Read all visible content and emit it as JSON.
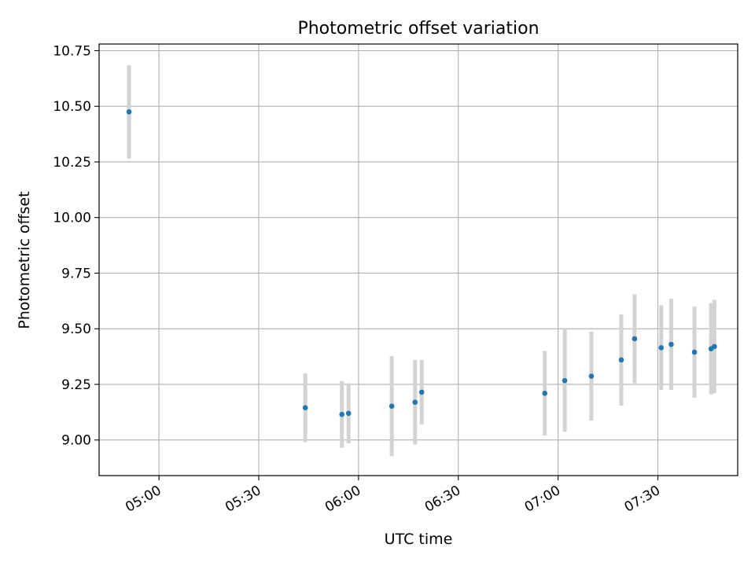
{
  "chart_data": {
    "type": "scatter",
    "title": "Photometric offset variation",
    "xlabel": "UTC time",
    "ylabel": "Photometric offset",
    "xlim": [
      "04:42",
      "07:54"
    ],
    "ylim": [
      8.84,
      10.78
    ],
    "x_ticks": [
      "05:00",
      "05:30",
      "06:00",
      "06:30",
      "07:00",
      "07:30"
    ],
    "y_ticks": [
      "9.00",
      "9.25",
      "9.50",
      "9.75",
      "10.00",
      "10.25",
      "10.50",
      "10.75"
    ],
    "grid": true,
    "colors": {
      "point": "#1f77b4",
      "errorbar": "#d3d3d3",
      "grid": "#b0b0b0"
    },
    "series": [
      {
        "x": [
          "04:51",
          "05:44",
          "05:55",
          "05:57",
          "06:10",
          "06:17",
          "06:19",
          "06:56",
          "07:02",
          "07:10",
          "07:19",
          "07:23",
          "07:31",
          "07:34",
          "07:41",
          "07:46",
          "07:47"
        ],
        "y": [
          10.475,
          9.145,
          9.115,
          9.12,
          9.152,
          9.17,
          9.215,
          9.21,
          9.267,
          9.287,
          9.36,
          9.455,
          9.415,
          9.43,
          9.395,
          9.41,
          9.42
        ],
        "yerr": [
          0.21,
          0.155,
          0.15,
          0.135,
          0.225,
          0.19,
          0.145,
          0.19,
          0.23,
          0.2,
          0.205,
          0.2,
          0.19,
          0.205,
          0.205,
          0.205,
          0.21
        ]
      }
    ]
  }
}
